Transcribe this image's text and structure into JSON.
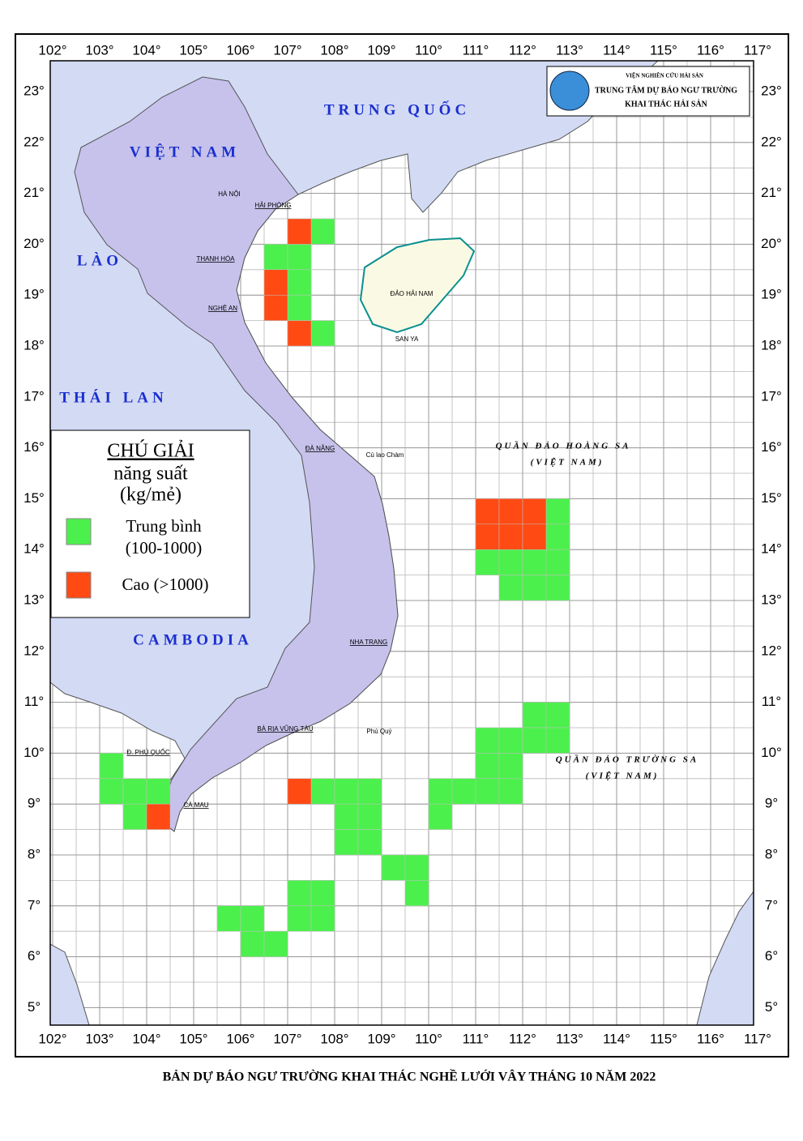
{
  "header": {
    "institute": "VIỆN NGHIÊN CỨU HẢI SẢN",
    "center": "TRUNG TÂM DỰ BÁO NGƯ TRƯỜNG",
    "division": "KHAI THÁC HẢI SẢN"
  },
  "map": {
    "lon_ticks": [
      {
        "value": 102,
        "label": "102°"
      },
      {
        "value": 103,
        "label": "103°"
      },
      {
        "value": 104,
        "label": "104°"
      },
      {
        "value": 105,
        "label": "105°"
      },
      {
        "value": 106,
        "label": "106°"
      },
      {
        "value": 107,
        "label": "107°"
      },
      {
        "value": 108,
        "label": "108°"
      },
      {
        "value": 109,
        "label": "109°"
      },
      {
        "value": 110,
        "label": "110°"
      },
      {
        "value": 111,
        "label": "111°"
      },
      {
        "value": 112,
        "label": "112°"
      },
      {
        "value": 113,
        "label": "113°"
      },
      {
        "value": 114,
        "label": "114°"
      },
      {
        "value": 115,
        "label": "115°"
      },
      {
        "value": 116,
        "label": "116°"
      },
      {
        "value": 117,
        "label": "117°"
      }
    ],
    "lat_ticks": [
      {
        "value": 23,
        "label": "23°"
      },
      {
        "value": 22,
        "label": "22°"
      },
      {
        "value": 21,
        "label": "21°"
      },
      {
        "value": 20,
        "label": "20°"
      },
      {
        "value": 19,
        "label": "19°"
      },
      {
        "value": 18,
        "label": "18°"
      },
      {
        "value": 17,
        "label": "17°"
      },
      {
        "value": 16,
        "label": "16°"
      },
      {
        "value": 15,
        "label": "15°"
      },
      {
        "value": 14,
        "label": "14°"
      },
      {
        "value": 13,
        "label": "13°"
      },
      {
        "value": 12,
        "label": "12°"
      },
      {
        "value": 11,
        "label": "11°"
      },
      {
        "value": 10,
        "label": "10°"
      },
      {
        "value": 9,
        "label": "9°"
      },
      {
        "value": 8,
        "label": "8°"
      },
      {
        "value": 7,
        "label": "7°"
      },
      {
        "value": 6,
        "label": "6°"
      },
      {
        "value": 5,
        "label": "5°"
      }
    ],
    "countries": [
      "TRUNG QUỐC",
      "VIỆT NAM",
      "LÀO",
      "THÁI LAN",
      "CAMBODIA"
    ],
    "places": [
      "HÀ NỘI",
      "HẢI PHÒNG",
      "THANH HÓA",
      "NGHỆ AN",
      "ĐÀ NẴNG",
      "NHA TRANG",
      "BÀ RỊA VŨNG TÀU",
      "CÀ MAU",
      "Đ. PHÚ QUỐC",
      "ĐẢO HẢI NAM",
      "SAN YA",
      "Phú Quý",
      "Cù lao Chàm"
    ],
    "archipelagos": [
      "QUẦN ĐẢO HOÀNG SA",
      "(VIỆT NAM)",
      "QUẦN ĐẢO TRƯỜNG SA",
      "(VIỆT NAM)"
    ]
  },
  "legend": {
    "title": "CHÚ GIẢI",
    "subtitle": "năng suất",
    "unit": "(kg/mẻ)",
    "items": [
      {
        "label": "Trung bình",
        "range": "(100-1000)",
        "color": "#4cf04c",
        "cells": [
          [
            107.5,
            20
          ],
          [
            106.5,
            19.5
          ],
          [
            107,
            19.5
          ],
          [
            107,
            19
          ],
          [
            107,
            18.5
          ],
          [
            107.5,
            18
          ],
          [
            112.5,
            14.5
          ],
          [
            112.5,
            14
          ],
          [
            111,
            13.5
          ],
          [
            111.5,
            13.5
          ],
          [
            112,
            13.5
          ],
          [
            112.5,
            13.5
          ],
          [
            111.5,
            13
          ],
          [
            112,
            13
          ],
          [
            112.5,
            13
          ],
          [
            112,
            10.5
          ],
          [
            112.5,
            10.5
          ],
          [
            111,
            10
          ],
          [
            111.5,
            10
          ],
          [
            112,
            10
          ],
          [
            112.5,
            10
          ],
          [
            111,
            9.5
          ],
          [
            111.5,
            9.5
          ],
          [
            110,
            9
          ],
          [
            110.5,
            9
          ],
          [
            111,
            9
          ],
          [
            111.5,
            9
          ],
          [
            110,
            8.5
          ],
          [
            107.5,
            9
          ],
          [
            108,
            9
          ],
          [
            108.5,
            9
          ],
          [
            108,
            8.5
          ],
          [
            108.5,
            8.5
          ],
          [
            108,
            8
          ],
          [
            108.5,
            8
          ],
          [
            109,
            7.5
          ],
          [
            109.5,
            7.5
          ],
          [
            109.5,
            7
          ],
          [
            107,
            7
          ],
          [
            107.5,
            7
          ],
          [
            107,
            6.5
          ],
          [
            107.5,
            6.5
          ],
          [
            105.5,
            6.5
          ],
          [
            106,
            6.5
          ],
          [
            106,
            6
          ],
          [
            106.5,
            6
          ],
          [
            103,
            9.5
          ],
          [
            103,
            9
          ],
          [
            103.5,
            9
          ],
          [
            104,
            9
          ],
          [
            103.5,
            8.5
          ]
        ]
      },
      {
        "label": "Cao (>1000)",
        "color": "#ff4a14",
        "cells": [
          [
            107,
            20
          ],
          [
            106.5,
            19
          ],
          [
            106.5,
            18.5
          ],
          [
            107,
            18
          ],
          [
            111,
            14.5
          ],
          [
            111.5,
            14.5
          ],
          [
            112,
            14.5
          ],
          [
            111,
            14
          ],
          [
            111.5,
            14
          ],
          [
            112,
            14
          ],
          [
            107,
            9
          ],
          [
            104,
            8.5
          ]
        ]
      }
    ]
  },
  "caption": "BẢN DỰ BÁO NGƯ TRƯỜNG KHAI THÁC NGHỀ LƯỚI VÂY THÁNG 10 NĂM 2022"
}
